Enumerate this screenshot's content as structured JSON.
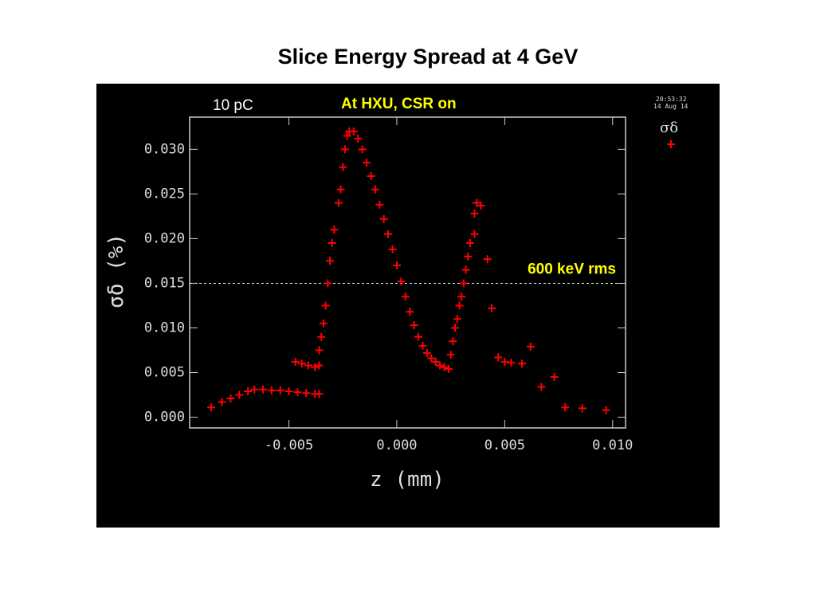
{
  "chart_data": {
    "type": "scatter",
    "title": "Slice Energy Spread at 4 GeV",
    "xlabel": "z (mm)",
    "ylabel": "σδ (%)",
    "annotations": [
      "10 pC",
      "At HXU, CSR on"
    ],
    "timestamp": [
      "20:53:32",
      "14 Aug 14"
    ],
    "hline": {
      "value": 0.015,
      "label": "600 keV rms"
    },
    "xlim": [
      -0.0096,
      0.0106
    ],
    "ylim": [
      -0.0012,
      0.0336
    ],
    "xticks": [
      {
        "value": -0.005,
        "label": "-0.005"
      },
      {
        "value": 0,
        "label": "0.000"
      },
      {
        "value": 0.005,
        "label": "0.005"
      },
      {
        "value": 0.01,
        "label": "0.010"
      }
    ],
    "yticks": [
      {
        "value": 0,
        "label": "0.000"
      },
      {
        "value": 0.005,
        "label": "0.005"
      },
      {
        "value": 0.01,
        "label": "0.010"
      },
      {
        "value": 0.015,
        "label": "0.015"
      },
      {
        "value": 0.02,
        "label": "0.020"
      },
      {
        "value": 0.025,
        "label": "0.025"
      },
      {
        "value": 0.03,
        "label": "0.030"
      }
    ],
    "x": [
      -0.0086,
      -0.0081,
      -0.0077,
      -0.0073,
      -0.0069,
      -0.0066,
      -0.0062,
      -0.0058,
      -0.0054,
      -0.005,
      -0.0046,
      -0.0042,
      -0.0038,
      -0.0036,
      -0.0047,
      -0.0044,
      -0.0041,
      -0.0038,
      -0.0036,
      -0.0036,
      -0.0035,
      -0.0034,
      -0.0033,
      -0.0032,
      -0.0031,
      -0.003,
      -0.0029,
      -0.0027,
      -0.0026,
      -0.0025,
      -0.0024,
      -0.0023,
      -0.0022,
      -0.002,
      -0.0018,
      -0.0016,
      -0.0014,
      -0.0012,
      -0.001,
      -0.0008,
      -0.0006,
      -0.0004,
      -0.0002,
      0,
      0.0002,
      0.0004,
      0.0006,
      0.0008,
      0.001,
      0.0012,
      0.0014,
      0.0016,
      0.0018,
      0.002,
      0.0022,
      0.0024,
      0.0025,
      0.0026,
      0.0027,
      0.0028,
      0.0029,
      0.003,
      0.0031,
      0.0032,
      0.0033,
      0.0034,
      0.0036,
      0.0036,
      0.0037,
      0.0039,
      0.0042,
      0.0044,
      0.0047,
      0.005,
      0.0053,
      0.0058,
      0.0062,
      0.0067,
      0.0073,
      0.0078,
      0.0086,
      0.0097
    ],
    "series": [
      {
        "name": "σδ",
        "color": "#ff0000",
        "values": [
          0.0011,
          0.0017,
          0.0021,
          0.0025,
          0.0029,
          0.0031,
          0.0031,
          0.003,
          0.003,
          0.0029,
          0.0028,
          0.0027,
          0.0026,
          0.0026,
          0.0062,
          0.006,
          0.0058,
          0.0056,
          0.0058,
          0.0075,
          0.009,
          0.0105,
          0.0125,
          0.015,
          0.0175,
          0.0195,
          0.021,
          0.024,
          0.0255,
          0.028,
          0.03,
          0.0315,
          0.032,
          0.032,
          0.0312,
          0.03,
          0.0285,
          0.027,
          0.0255,
          0.0238,
          0.0222,
          0.0205,
          0.0188,
          0.017,
          0.0152,
          0.0135,
          0.0118,
          0.0103,
          0.009,
          0.008,
          0.0072,
          0.0066,
          0.0062,
          0.0058,
          0.0056,
          0.0054,
          0.007,
          0.0085,
          0.01,
          0.011,
          0.0125,
          0.0135,
          0.015,
          0.0165,
          0.018,
          0.0195,
          0.0205,
          0.0228,
          0.024,
          0.0237,
          0.0177,
          0.0122,
          0.0067,
          0.0062,
          0.0061,
          0.006,
          0.0079,
          0.0034,
          0.0045,
          0.0011,
          0.001,
          0.0008
        ]
      }
    ]
  }
}
